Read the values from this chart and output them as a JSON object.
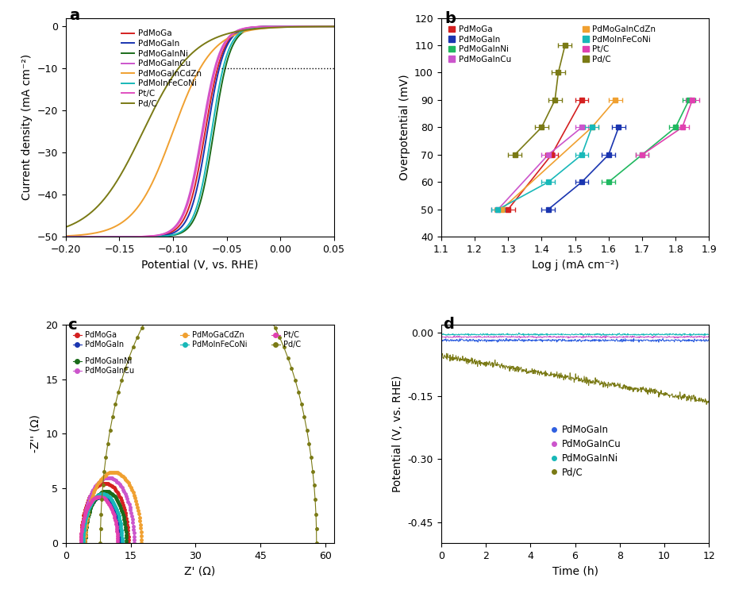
{
  "panel_a": {
    "xlabel": "Potential (V, vs. RHE)",
    "ylabel": "Current density (mA cm⁻²)",
    "xlim": [
      -0.2,
      0.05
    ],
    "ylim": [
      -50,
      2
    ],
    "curves": [
      {
        "label": "PdMoGa",
        "color": "#d42020",
        "x_mid": -0.07,
        "steep": 120
      },
      {
        "label": "PdMoGaIn",
        "color": "#1a35b0",
        "x_mid": -0.068,
        "steep": 125
      },
      {
        "label": "PdMoGaInNi",
        "color": "#1a6b1a",
        "x_mid": -0.062,
        "steep": 130
      },
      {
        "label": "PdMoGaInCu",
        "color": "#cc55cc",
        "x_mid": -0.073,
        "steep": 118
      },
      {
        "label": "PdMoGaInCdZn",
        "color": "#f0a030",
        "x_mid": -0.1,
        "steep": 55
      },
      {
        "label": "PdMoInFeCoNi",
        "color": "#18b8b8",
        "x_mid": -0.064,
        "steep": 130
      },
      {
        "label": "Pt/C",
        "color": "#e050c0",
        "x_mid": -0.072,
        "steep": 118
      },
      {
        "label": "Pd/C",
        "color": "#7a7a15",
        "x_mid": -0.128,
        "steep": 42
      }
    ],
    "dotted_y": -10,
    "dotted_xstart": -0.055,
    "dotted_xend": 0.05
  },
  "panel_b": {
    "xlabel": "Log j (mA cm⁻²)",
    "ylabel": "Overpotential (mV)",
    "xlim": [
      1.1,
      1.9
    ],
    "ylim": [
      40,
      120
    ],
    "series": [
      {
        "label": "PdMoGa",
        "color": "#d42020",
        "x": [
          1.3,
          1.43,
          1.52
        ],
        "y": [
          50,
          70,
          90
        ]
      },
      {
        "label": "PdMoGaIn",
        "color": "#1a35b0",
        "x": [
          1.42,
          1.52,
          1.6
        ],
        "y": [
          50,
          60,
          70
        ],
        "x2": [
          1.63
        ],
        "y2": [
          80
        ]
      },
      {
        "label": "PdMoGaInNi",
        "color": "#20b860",
        "x": [
          1.6,
          1.7,
          1.8
        ],
        "y": [
          60,
          70,
          80
        ],
        "x2": [
          1.84
        ],
        "y2": [
          90
        ]
      },
      {
        "label": "PdMoGaInCu",
        "color": "#cc55cc",
        "x": [
          1.27,
          1.42,
          1.52
        ],
        "y": [
          50,
          70,
          80
        ]
      },
      {
        "label": "PdMoGaInCdZn",
        "color": "#f0a030",
        "x": [
          1.28,
          1.55,
          1.62
        ],
        "y": [
          50,
          80,
          90
        ]
      },
      {
        "label": "PdMoInFeCoNi",
        "color": "#18b8b8",
        "x": [
          1.27,
          1.42,
          1.52
        ],
        "y": [
          50,
          60,
          70
        ],
        "x2": [
          1.55
        ],
        "y2": [
          80
        ]
      },
      {
        "label": "Pt/C",
        "color": "#e040b0",
        "x": [
          1.7,
          1.82
        ],
        "y": [
          70,
          80
        ],
        "x2": [
          1.85
        ],
        "y2": [
          90
        ]
      },
      {
        "label": "Pd/C",
        "color": "#7a7a15",
        "x": [
          1.32,
          1.4,
          1.44,
          1.45,
          1.47
        ],
        "y": [
          70,
          80,
          90,
          100,
          110
        ]
      }
    ]
  },
  "panel_c": {
    "xlabel": "Z' (Ω)",
    "ylabel": "-Z'' (Ω)",
    "xlim": [
      0,
      62
    ],
    "ylim": [
      0,
      20
    ],
    "curves": [
      {
        "label": "PdMoGa",
        "color": "#d42020",
        "rs": 3.5,
        "rct": 11.0
      },
      {
        "label": "PdMoGaIn",
        "color": "#1a35b0",
        "rs": 4.0,
        "rct": 8.5
      },
      {
        "label": "PdMoGaInNi",
        "color": "#1a6b1a",
        "rs": 4.5,
        "rct": 9.5
      },
      {
        "label": "PdMoGaInCu",
        "color": "#cc55cc",
        "rs": 3.8,
        "rct": 12.0
      },
      {
        "label": "PdMoGaCdZn",
        "color": "#f0a030",
        "rs": 4.5,
        "rct": 13.0
      },
      {
        "label": "PdMoInFeCoNi",
        "color": "#18b8b8",
        "rs": 4.0,
        "rct": 9.0
      },
      {
        "label": "Pt/C",
        "color": "#e040b0",
        "rs": 3.5,
        "rct": 8.5
      },
      {
        "label": "Pd/C",
        "color": "#7a7a15",
        "rs": 8.0,
        "rct": 50.0
      }
    ]
  },
  "panel_d": {
    "xlabel": "Time (h)",
    "ylabel": "Potential (V, vs. RHE)",
    "xlim": [
      0,
      12
    ],
    "ylim": [
      -0.5,
      0.02
    ],
    "yticks": [
      0.0,
      -0.15,
      -0.3,
      -0.45
    ],
    "curves": [
      {
        "label": "PdMoGaInNi",
        "color": "#18b8b8",
        "base": -0.004,
        "noise": 0.001,
        "drift": 0.0
      },
      {
        "label": "PdMoGaInCu",
        "color": "#cc55cc",
        "base": -0.01,
        "noise": 0.001,
        "drift": 0.0
      },
      {
        "label": "PdMoGaIn",
        "color": "#3060e0",
        "base": -0.018,
        "noise": 0.0015,
        "drift": 0.0
      },
      {
        "label": "Pd/C",
        "color": "#7a7a15",
        "base": -0.055,
        "noise": 0.004,
        "drift": 0.009
      }
    ]
  }
}
